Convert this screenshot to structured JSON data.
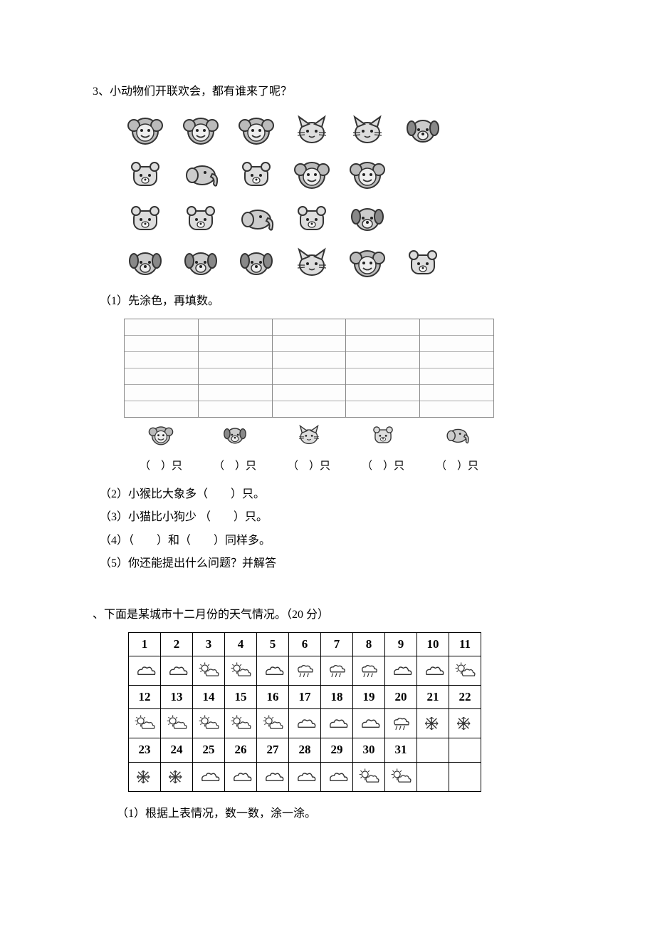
{
  "question3": {
    "title": "3、小动物们开联欢会，都有谁来了呢？",
    "animal_rows": [
      [
        "monkey",
        "monkey",
        "monkey",
        "cat",
        "cat",
        "dog"
      ],
      [
        "bear",
        "elephant",
        "bear",
        "monkey",
        "monkey"
      ],
      [
        "bear",
        "bear",
        "elephant",
        "bear",
        "dog"
      ],
      [
        "dog",
        "dog",
        "dog",
        "cat",
        "monkey",
        "bear"
      ]
    ],
    "sub1_text": "（1）先涂色，再填数。",
    "chart": {
      "row_count": 6,
      "categories": [
        "monkey",
        "dog",
        "cat",
        "bear",
        "elephant"
      ],
      "blank_label": "（　）只"
    },
    "sub2": "（2）小猴比大象多（　　）只。",
    "sub3": "（3）小猫比小狗少 （　　）只。",
    "sub4": "（4）（　　）和（　　）同样多。",
    "sub5": "（5）你还能提出什么问题？并解答"
  },
  "weather": {
    "title": "、下面是某城市十二月份的天气情况。（20 分）",
    "days": [
      {
        "d": "1",
        "w": "cloud"
      },
      {
        "d": "2",
        "w": "cloud"
      },
      {
        "d": "3",
        "w": "partly"
      },
      {
        "d": "4",
        "w": "partly"
      },
      {
        "d": "5",
        "w": "cloud"
      },
      {
        "d": "6",
        "w": "rain"
      },
      {
        "d": "7",
        "w": "rain"
      },
      {
        "d": "8",
        "w": "rain"
      },
      {
        "d": "9",
        "w": "cloud"
      },
      {
        "d": "10",
        "w": "cloud"
      },
      {
        "d": "11",
        "w": "partly"
      },
      {
        "d": "12",
        "w": "partly"
      },
      {
        "d": "13",
        "w": "partly"
      },
      {
        "d": "14",
        "w": "partly"
      },
      {
        "d": "15",
        "w": "partly"
      },
      {
        "d": "16",
        "w": "partly"
      },
      {
        "d": "17",
        "w": "cloud"
      },
      {
        "d": "18",
        "w": "cloud"
      },
      {
        "d": "19",
        "w": "cloud"
      },
      {
        "d": "20",
        "w": "rain"
      },
      {
        "d": "21",
        "w": "snow"
      },
      {
        "d": "22",
        "w": "snow"
      },
      {
        "d": "23",
        "w": "snow"
      },
      {
        "d": "24",
        "w": "snow"
      },
      {
        "d": "25",
        "w": "cloud"
      },
      {
        "d": "26",
        "w": "cloud"
      },
      {
        "d": "27",
        "w": "cloud"
      },
      {
        "d": "28",
        "w": "cloud"
      },
      {
        "d": "29",
        "w": "cloud"
      },
      {
        "d": "30",
        "w": "partly"
      },
      {
        "d": "31",
        "w": "partly"
      },
      {
        "d": "",
        "w": ""
      },
      {
        "d": "",
        "w": ""
      }
    ],
    "sub1": "（1）根据上表情况，数一数，涂一涂。"
  },
  "colors": {
    "text": "#000000",
    "border": "#000000",
    "grid": "#888888",
    "bg": "#ffffff"
  }
}
